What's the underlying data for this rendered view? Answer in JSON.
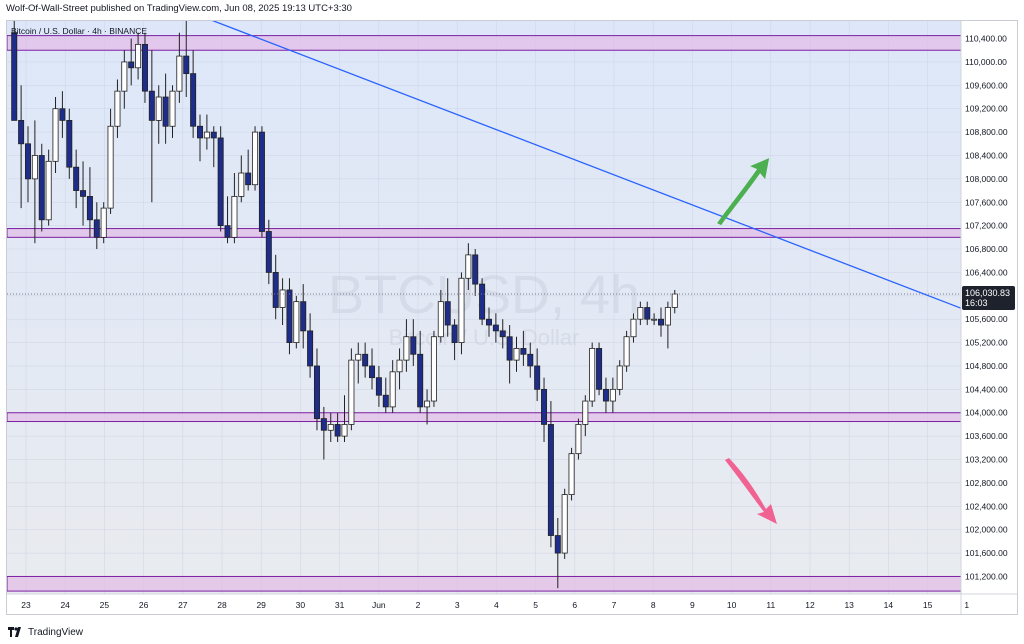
{
  "header": {
    "publisher_text": "Wolf-Of-Wall-Street published on TradingView.com, Jun 08, 2025 19:13 UTC+3:30"
  },
  "chart_data": {
    "type": "candlestick",
    "symbol_line": "Bitcoin / U.S. Dollar · 4h · BINANCE",
    "watermark": {
      "symbol": "BTCUSD, 4h",
      "name": "Bitcoin / U.S. Dollar"
    },
    "y_axis": {
      "min": 100900,
      "max": 110700,
      "ticks": [
        "110,400.00",
        "110,000.00",
        "109,600.00",
        "109,200.00",
        "108,800.00",
        "108,400.00",
        "108,000.00",
        "107,600.00",
        "107,200.00",
        "106,800.00",
        "106,400.00",
        "106,000.00",
        "105,600.00",
        "105,200.00",
        "104,800.00",
        "104,400.00",
        "104,000.00",
        "103,600.00",
        "103,200.00",
        "102,800.00",
        "102,400.00",
        "102,000.00",
        "101,600.00",
        "101,200.00"
      ],
      "tick_values": [
        110400,
        110000,
        109600,
        109200,
        108800,
        108400,
        108000,
        107600,
        107200,
        106800,
        106400,
        106000,
        105600,
        105200,
        104800,
        104400,
        104000,
        103600,
        103200,
        102800,
        102400,
        102000,
        101600,
        101200
      ]
    },
    "x_axis": {
      "ticks": [
        {
          "label": "23",
          "day": 0
        },
        {
          "label": "24",
          "day": 1
        },
        {
          "label": "25",
          "day": 2
        },
        {
          "label": "26",
          "day": 3
        },
        {
          "label": "27",
          "day": 4
        },
        {
          "label": "28",
          "day": 5
        },
        {
          "label": "29",
          "day": 6
        },
        {
          "label": "30",
          "day": 7
        },
        {
          "label": "31",
          "day": 8
        },
        {
          "label": "Jun",
          "day": 9
        },
        {
          "label": "2",
          "day": 10
        },
        {
          "label": "3",
          "day": 11
        },
        {
          "label": "4",
          "day": 12
        },
        {
          "label": "5",
          "day": 13
        },
        {
          "label": "6",
          "day": 14
        },
        {
          "label": "7",
          "day": 15
        },
        {
          "label": "8",
          "day": 16
        },
        {
          "label": "9",
          "day": 17
        },
        {
          "label": "10",
          "day": 18
        },
        {
          "label": "11",
          "day": 19
        },
        {
          "label": "12",
          "day": 20
        },
        {
          "label": "13",
          "day": 21
        },
        {
          "label": "14",
          "day": 22
        },
        {
          "label": "15",
          "day": 23
        },
        {
          "label": "1",
          "day": 24
        }
      ]
    },
    "last_price": {
      "label": "106,030.83",
      "countdown": "16:03",
      "value": 106030.83
    },
    "zones": [
      {
        "low": 110200,
        "high": 110450
      },
      {
        "low": 107000,
        "high": 107150
      },
      {
        "low": 103850,
        "high": 104000
      },
      {
        "low": 100950,
        "high": 101200
      }
    ],
    "trendline": {
      "from": {
        "day": 4.4,
        "price": 110800
      },
      "to": {
        "day": 24.0,
        "price": 105750
      }
    },
    "arrows": [
      {
        "direction": "up",
        "color": "#4caf50",
        "at": {
          "day": 18.6,
          "price": 108200
        }
      },
      {
        "direction": "down",
        "color": "#f06292",
        "at": {
          "day": 18.8,
          "price": 102200
        }
      }
    ],
    "colors": {
      "up": "#ffffff",
      "down": "#1f2d8a",
      "outline": "#222222",
      "trendline": "#2962ff",
      "zone_border": "#7b1fa2",
      "zone_fill": "#e1bee7"
    },
    "candles": [
      {
        "o": 110500,
        "h": 110800,
        "l": 109000,
        "c": 109000
      },
      {
        "o": 109000,
        "h": 109600,
        "l": 107500,
        "c": 108600
      },
      {
        "o": 108600,
        "h": 108900,
        "l": 107600,
        "c": 108000
      },
      {
        "o": 108000,
        "h": 109000,
        "l": 106900,
        "c": 108400
      },
      {
        "o": 108400,
        "h": 108600,
        "l": 107100,
        "c": 107300
      },
      {
        "o": 107300,
        "h": 108500,
        "l": 107200,
        "c": 108300
      },
      {
        "o": 108300,
        "h": 109400,
        "l": 108100,
        "c": 109200
      },
      {
        "o": 109200,
        "h": 109500,
        "l": 108700,
        "c": 109000
      },
      {
        "o": 109000,
        "h": 109200,
        "l": 108000,
        "c": 108200
      },
      {
        "o": 108200,
        "h": 108500,
        "l": 107500,
        "c": 107800
      },
      {
        "o": 107800,
        "h": 108300,
        "l": 107200,
        "c": 107700
      },
      {
        "o": 107700,
        "h": 108200,
        "l": 107000,
        "c": 107300
      },
      {
        "o": 107300,
        "h": 107600,
        "l": 106800,
        "c": 107000
      },
      {
        "o": 107000,
        "h": 107600,
        "l": 106900,
        "c": 107500
      },
      {
        "o": 107500,
        "h": 109200,
        "l": 107400,
        "c": 108900
      },
      {
        "o": 108900,
        "h": 109700,
        "l": 108700,
        "c": 109500
      },
      {
        "o": 109500,
        "h": 110200,
        "l": 109200,
        "c": 110000
      },
      {
        "o": 110000,
        "h": 110400,
        "l": 109600,
        "c": 109900
      },
      {
        "o": 109900,
        "h": 110500,
        "l": 109700,
        "c": 110300
      },
      {
        "o": 110300,
        "h": 110500,
        "l": 109300,
        "c": 109500
      },
      {
        "o": 109500,
        "h": 110200,
        "l": 107600,
        "c": 109000
      },
      {
        "o": 109000,
        "h": 109600,
        "l": 108600,
        "c": 109400
      },
      {
        "o": 109400,
        "h": 109800,
        "l": 108600,
        "c": 108900
      },
      {
        "o": 108900,
        "h": 109600,
        "l": 108700,
        "c": 109500
      },
      {
        "o": 109500,
        "h": 110500,
        "l": 109300,
        "c": 110100
      },
      {
        "o": 110100,
        "h": 110900,
        "l": 109400,
        "c": 109800
      },
      {
        "o": 109800,
        "h": 110200,
        "l": 108700,
        "c": 108900
      },
      {
        "o": 108900,
        "h": 109100,
        "l": 108300,
        "c": 108700
      },
      {
        "o": 108700,
        "h": 109100,
        "l": 108500,
        "c": 108800
      },
      {
        "o": 108800,
        "h": 108900,
        "l": 108200,
        "c": 108700
      },
      {
        "o": 108700,
        "h": 108900,
        "l": 107100,
        "c": 107200
      },
      {
        "o": 107200,
        "h": 107700,
        "l": 106900,
        "c": 107000
      },
      {
        "o": 107000,
        "h": 108100,
        "l": 106900,
        "c": 107700
      },
      {
        "o": 107700,
        "h": 108400,
        "l": 107600,
        "c": 108100
      },
      {
        "o": 108100,
        "h": 108500,
        "l": 107800,
        "c": 107900
      },
      {
        "o": 107900,
        "h": 108900,
        "l": 107800,
        "c": 108800
      },
      {
        "o": 108800,
        "h": 108900,
        "l": 107000,
        "c": 107100
      },
      {
        "o": 107100,
        "h": 107300,
        "l": 106200,
        "c": 106400
      },
      {
        "o": 106400,
        "h": 106700,
        "l": 105600,
        "c": 105800
      },
      {
        "o": 105800,
        "h": 106300,
        "l": 105500,
        "c": 106100
      },
      {
        "o": 106100,
        "h": 106300,
        "l": 105000,
        "c": 105200
      },
      {
        "o": 105200,
        "h": 106000,
        "l": 105100,
        "c": 105900
      },
      {
        "o": 105900,
        "h": 106200,
        "l": 105100,
        "c": 105400
      },
      {
        "o": 105400,
        "h": 105700,
        "l": 104600,
        "c": 104800
      },
      {
        "o": 104800,
        "h": 105100,
        "l": 103700,
        "c": 103900
      },
      {
        "o": 103900,
        "h": 104100,
        "l": 103200,
        "c": 103700
      },
      {
        "o": 103700,
        "h": 104000,
        "l": 103500,
        "c": 103800
      },
      {
        "o": 103800,
        "h": 104000,
        "l": 103500,
        "c": 103600
      },
      {
        "o": 103600,
        "h": 104300,
        "l": 103500,
        "c": 103800
      },
      {
        "o": 103800,
        "h": 105100,
        "l": 103700,
        "c": 104900
      },
      {
        "o": 104900,
        "h": 105200,
        "l": 104500,
        "c": 105000
      },
      {
        "o": 105000,
        "h": 105200,
        "l": 104600,
        "c": 104800
      },
      {
        "o": 104800,
        "h": 105100,
        "l": 104400,
        "c": 104600
      },
      {
        "o": 104600,
        "h": 104800,
        "l": 104100,
        "c": 104300
      },
      {
        "o": 104300,
        "h": 104600,
        "l": 104000,
        "c": 104100
      },
      {
        "o": 104100,
        "h": 104900,
        "l": 104000,
        "c": 104700
      },
      {
        "o": 104700,
        "h": 105100,
        "l": 104400,
        "c": 104900
      },
      {
        "o": 104900,
        "h": 105600,
        "l": 104700,
        "c": 105300
      },
      {
        "o": 105300,
        "h": 105600,
        "l": 104800,
        "c": 105000
      },
      {
        "o": 105000,
        "h": 105400,
        "l": 104000,
        "c": 104100
      },
      {
        "o": 104100,
        "h": 104400,
        "l": 103800,
        "c": 104200
      },
      {
        "o": 104200,
        "h": 105400,
        "l": 104100,
        "c": 105300
      },
      {
        "o": 105300,
        "h": 106100,
        "l": 105200,
        "c": 105900
      },
      {
        "o": 105900,
        "h": 106300,
        "l": 105300,
        "c": 105500
      },
      {
        "o": 105500,
        "h": 105600,
        "l": 104900,
        "c": 105200
      },
      {
        "o": 105200,
        "h": 106400,
        "l": 105000,
        "c": 106300
      },
      {
        "o": 106300,
        "h": 106900,
        "l": 106100,
        "c": 106700
      },
      {
        "o": 106700,
        "h": 106800,
        "l": 106000,
        "c": 106200
      },
      {
        "o": 106200,
        "h": 106300,
        "l": 105500,
        "c": 105600
      },
      {
        "o": 105600,
        "h": 105800,
        "l": 105300,
        "c": 105500
      },
      {
        "o": 105500,
        "h": 105700,
        "l": 105200,
        "c": 105400
      },
      {
        "o": 105400,
        "h": 105600,
        "l": 105100,
        "c": 105300
      },
      {
        "o": 105300,
        "h": 105500,
        "l": 104500,
        "c": 104900
      },
      {
        "o": 104900,
        "h": 105300,
        "l": 104700,
        "c": 105100
      },
      {
        "o": 105100,
        "h": 105400,
        "l": 104800,
        "c": 105000
      },
      {
        "o": 105000,
        "h": 105200,
        "l": 104600,
        "c": 104800
      },
      {
        "o": 104800,
        "h": 105100,
        "l": 104200,
        "c": 104400
      },
      {
        "o": 104400,
        "h": 104600,
        "l": 103500,
        "c": 103800
      },
      {
        "o": 103800,
        "h": 104200,
        "l": 101700,
        "c": 101900
      },
      {
        "o": 101900,
        "h": 102200,
        "l": 101000,
        "c": 101600
      },
      {
        "o": 101600,
        "h": 102700,
        "l": 101500,
        "c": 102600
      },
      {
        "o": 102600,
        "h": 103400,
        "l": 102500,
        "c": 103300
      },
      {
        "o": 103300,
        "h": 103900,
        "l": 103200,
        "c": 103800
      },
      {
        "o": 103800,
        "h": 104300,
        "l": 103600,
        "c": 104200
      },
      {
        "o": 104200,
        "h": 105200,
        "l": 104100,
        "c": 105100
      },
      {
        "o": 105100,
        "h": 105200,
        "l": 104300,
        "c": 104400
      },
      {
        "o": 104400,
        "h": 104600,
        "l": 104000,
        "c": 104200
      },
      {
        "o": 104200,
        "h": 104600,
        "l": 104000,
        "c": 104400
      },
      {
        "o": 104400,
        "h": 104900,
        "l": 104300,
        "c": 104800
      },
      {
        "o": 104800,
        "h": 105400,
        "l": 104700,
        "c": 105300
      },
      {
        "o": 105300,
        "h": 105700,
        "l": 105200,
        "c": 105600
      },
      {
        "o": 105600,
        "h": 105900,
        "l": 105500,
        "c": 105800
      },
      {
        "o": 105800,
        "h": 105900,
        "l": 105500,
        "c": 105600
      },
      {
        "o": 105600,
        "h": 105700,
        "l": 105500,
        "c": 105600
      },
      {
        "o": 105600,
        "h": 105800,
        "l": 105300,
        "c": 105500
      },
      {
        "o": 105500,
        "h": 105900,
        "l": 105100,
        "c": 105800
      },
      {
        "o": 105800,
        "h": 106100,
        "l": 105700,
        "c": 106030
      }
    ]
  },
  "footer": {
    "brand": "TradingView"
  }
}
